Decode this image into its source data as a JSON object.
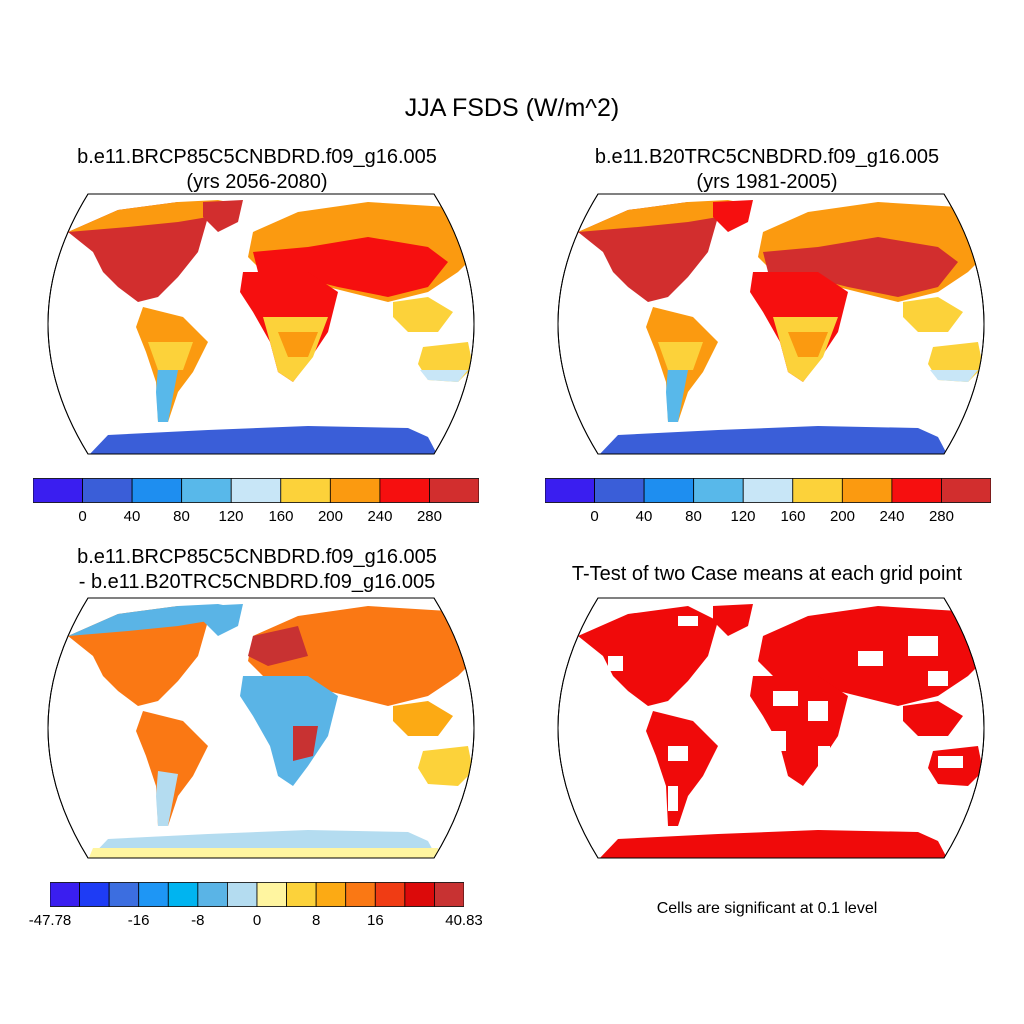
{
  "figure": {
    "main_title": "JJA FSDS (W/m^2)"
  },
  "panels": [
    {
      "id": "future",
      "title_line1": "b.e11.BRCP85C5CNBDRD.f09_g16.005",
      "title_line2": "(yrs 2056-2080)",
      "field": "FSDS mean, JJA"
    },
    {
      "id": "historical",
      "title_line1": "b.e11.B20TRC5CNBDRD.f09_g16.005",
      "title_line2": "(yrs 1981-2005)",
      "field": "FSDS mean, JJA"
    },
    {
      "id": "difference",
      "title_line1": "b.e11.BRCP85C5CNBDRD.f09_g16.005",
      "title_line2": "- b.e11.B20TRC5CNBDRD.f09_g16.005",
      "field": "FSDS difference"
    },
    {
      "id": "ttest",
      "title_line1": "T-Test of two Case means at each grid point",
      "note": "Cells are significant at 0.1 level",
      "field": "significance mask"
    }
  ],
  "colorbars": {
    "mean": {
      "colors": [
        "#3a1ef0",
        "#3a5ed8",
        "#1e8ef0",
        "#58b8ea",
        "#c8e6f7",
        "#fcd23a",
        "#fb9a10",
        "#f60f0f",
        "#d22e2e"
      ],
      "tick_labels": [
        "0",
        "40",
        "80",
        "120",
        "160",
        "200",
        "240",
        "280"
      ]
    },
    "diff": {
      "colors": [
        "#3a1ef0",
        "#1e3cf5",
        "#3c6ee0",
        "#1e96f5",
        "#00b4f0",
        "#5ab4e6",
        "#b4dcf0",
        "#fff5a0",
        "#fcd23a",
        "#fcaa14",
        "#fa7814",
        "#f03c14",
        "#dc0a0a",
        "#c83232"
      ],
      "tick_labels": [
        "-47.78",
        "-16",
        "-8",
        "0",
        "8",
        "16",
        "40.83"
      ]
    }
  },
  "map_colors": {
    "ocean": "#ffffff",
    "outline": "#000000",
    "significant": "#f00a0a"
  }
}
